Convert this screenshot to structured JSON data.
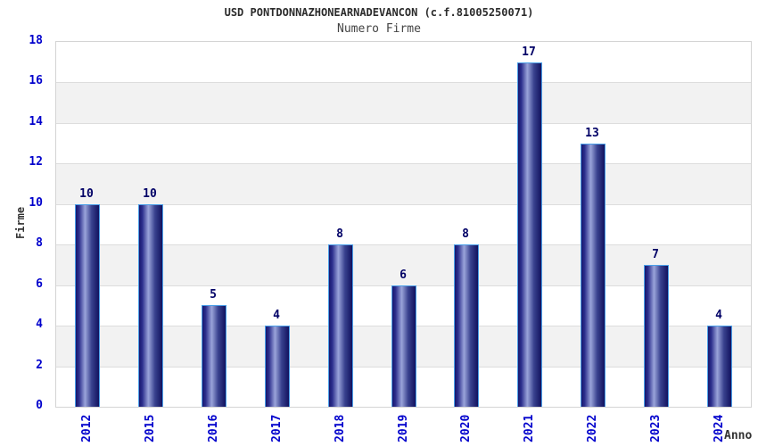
{
  "header": {
    "title": "USD PONTDONNAZHONEARNADEVANCON (c.f.81005250071)",
    "subtitle": "Numero Firme"
  },
  "chart_data": {
    "type": "bar",
    "title": "USD PONTDONNAZHONEARNADEVANCON (c.f.81005250071)",
    "subtitle": "Numero Firme",
    "categories": [
      "2012",
      "2015",
      "2016",
      "2017",
      "2018",
      "2019",
      "2020",
      "2021",
      "2022",
      "2023",
      "2024"
    ],
    "values": [
      10,
      10,
      5,
      4,
      8,
      6,
      8,
      17,
      13,
      7,
      4
    ],
    "xlabel": "Anno",
    "ylabel": "Firme",
    "ylim": [
      0,
      18
    ],
    "ytick_step": 2,
    "yticks": [
      0,
      2,
      4,
      6,
      8,
      10,
      12,
      14,
      16,
      18
    ],
    "grid": true,
    "legend": "none",
    "layout_hints": {
      "alternating_bands": true,
      "x_labels_rotated_90_ccw": true
    },
    "colors": {
      "axis_tick_label": "#0000cc",
      "value_label": "#000066",
      "bar_edge_dark": "#17176e",
      "bar_mid_light": "#9aa4da",
      "bar_border": "#4a9fe8",
      "band_gray": "#f2f2f2",
      "gridline": "#dddddd",
      "plot_border": "#d4d4d4",
      "text": "#333333"
    }
  }
}
